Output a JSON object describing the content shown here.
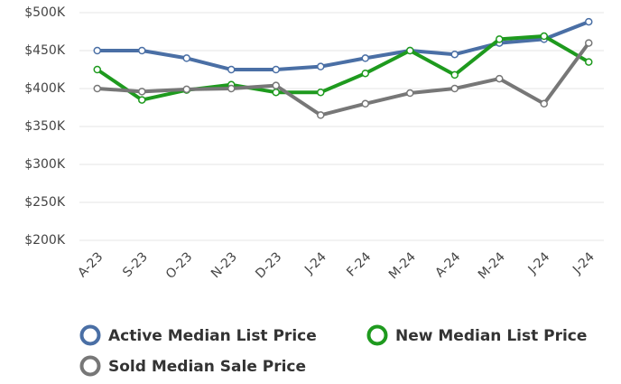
{
  "chart_data": {
    "type": "line",
    "categories": [
      "A-23",
      "S-23",
      "O-23",
      "N-23",
      "D-23",
      "J-24",
      "F-24",
      "M-24",
      "A-24",
      "M-24",
      "J-24",
      "J-24"
    ],
    "series": [
      {
        "name": "Active Median List Price",
        "color": "#4a6fa5",
        "values": [
          450000,
          450000,
          440000,
          425000,
          425000,
          429000,
          440000,
          450000,
          445000,
          460000,
          465000,
          488000
        ]
      },
      {
        "name": "New Median List Price",
        "color": "#1e9a1e",
        "values": [
          425000,
          385000,
          398000,
          405000,
          395000,
          395000,
          420000,
          450000,
          418000,
          465000,
          469000,
          435000
        ]
      },
      {
        "name": "Sold Median Sale Price",
        "color": "#777777",
        "values": [
          400000,
          396000,
          399000,
          400000,
          404000,
          365000,
          380000,
          394000,
          400000,
          413000,
          380000,
          460000
        ]
      }
    ],
    "ylim": [
      200000,
      500000
    ],
    "yticks": [
      {
        "value": 200000,
        "label": "$200K"
      },
      {
        "value": 250000,
        "label": "$250K"
      },
      {
        "value": 300000,
        "label": "$300K"
      },
      {
        "value": 350000,
        "label": "$350K"
      },
      {
        "value": 400000,
        "label": "$400K"
      },
      {
        "value": 450000,
        "label": "$450K"
      },
      {
        "value": 500000,
        "label": "$500K"
      }
    ],
    "grid": true
  }
}
